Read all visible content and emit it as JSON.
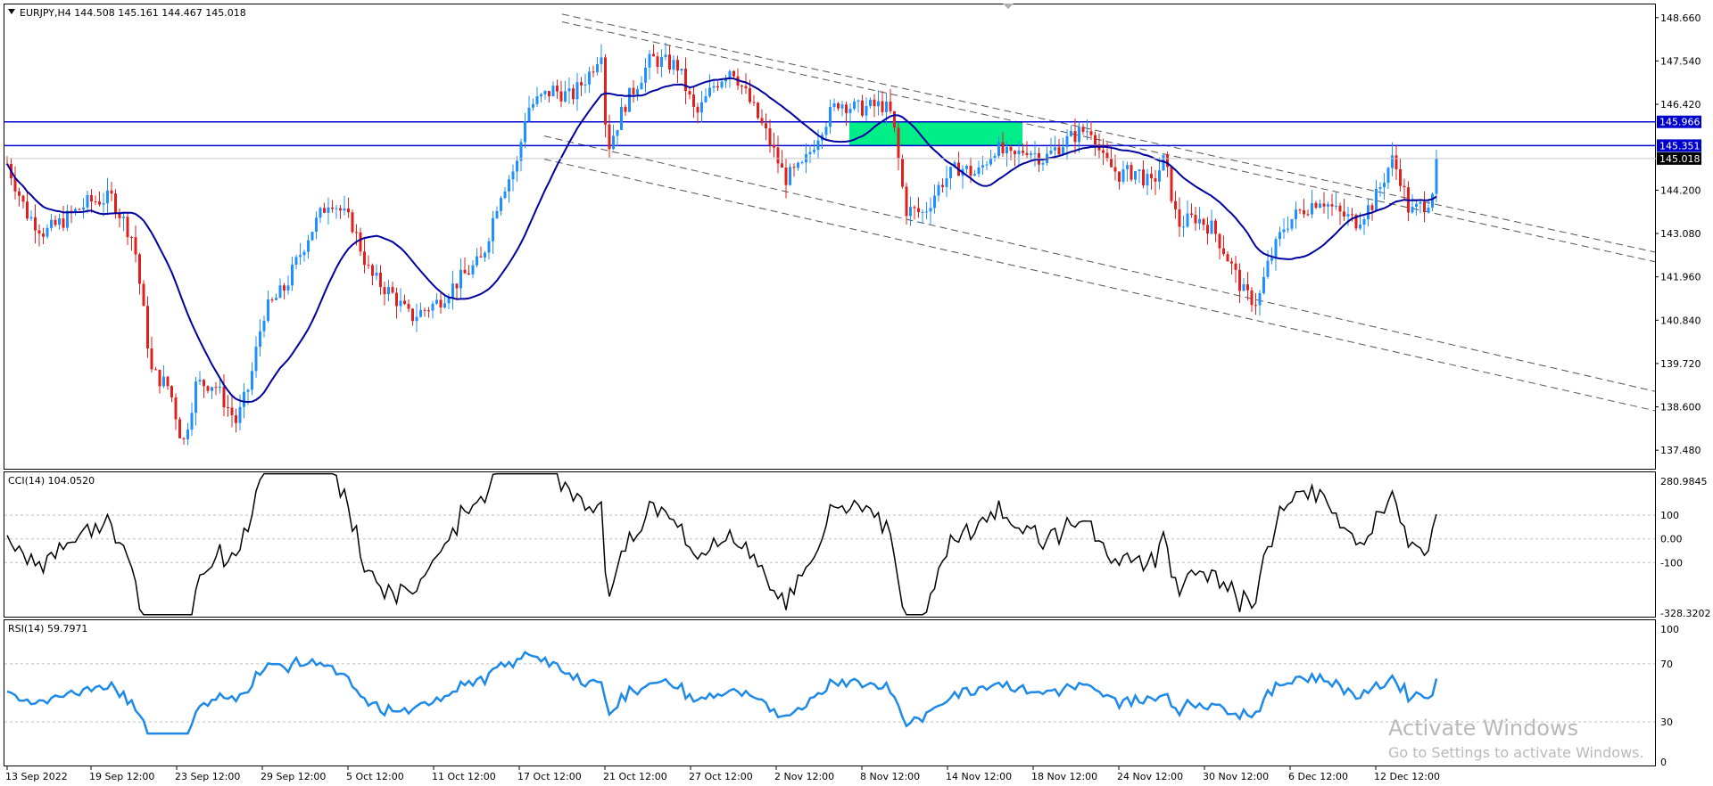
{
  "main": {
    "header": "EURJPY,H4  144.508 145.161 144.467 145.018",
    "price_ticks": [
      "148.660",
      "147.540",
      "146.420",
      "145.300",
      "144.200",
      "143.080",
      "141.960",
      "140.840",
      "139.720",
      "138.600",
      "137.480"
    ],
    "hlines": [
      {
        "value": 145.966,
        "label": "145.966",
        "color": "#0000cc"
      },
      {
        "value": 145.351,
        "label": "145.351",
        "color": "#0000cc"
      }
    ],
    "current": {
      "value": 145.018,
      "label": "145.018"
    },
    "ylim": [
      137.0,
      149.0
    ]
  },
  "cci": {
    "header": "CCI(14) 104.0520",
    "ticks": [
      "280.9845",
      "100",
      "0.00",
      "-100",
      "-328.3202"
    ],
    "levels": [
      100,
      0,
      -100
    ],
    "ylim": [
      -328.3202,
      280.9845
    ],
    "current": 104.052
  },
  "rsi": {
    "header": "RSI(14) 59.7971",
    "ticks": [
      "100",
      "70",
      "30",
      "0"
    ],
    "levels": [
      70,
      30
    ],
    "ylim": [
      0,
      100
    ],
    "current": 59.7971
  },
  "time_axis": [
    "13 Sep 2022",
    "19 Sep 12:00",
    "23 Sep 12:00",
    "29 Sep 12:00",
    "5 Oct 12:00",
    "11 Oct 12:00",
    "17 Oct 12:00",
    "21 Oct 12:00",
    "27 Oct 12:00",
    "2 Nov 12:00",
    "8 Nov 12:00",
    "14 Nov 12:00",
    "18 Nov 12:00",
    "24 Nov 12:00",
    "30 Nov 12:00",
    "6 Dec 12:00",
    "12 Dec 12:00"
  ],
  "watermark": {
    "line1": "Activate Windows",
    "line2": "Go to Settings to activate Windows."
  },
  "colors": {
    "bull": "#1e90ff",
    "bear": "#e0201c",
    "ma": "#0000a0",
    "hline": "#0000cc",
    "zone": "#00ee88",
    "rsi": "#1e8ae8"
  },
  "chart_data": {
    "type": "candlestick",
    "symbol": "EURJPY",
    "timeframe": "H4",
    "x": [
      "13 Sep 2022",
      "19 Sep 12:00",
      "23 Sep 12:00",
      "29 Sep 12:00",
      "5 Oct 12:00",
      "11 Oct 12:00",
      "17 Oct 12:00",
      "21 Oct 12:00",
      "27 Oct 12:00",
      "2 Nov 12:00",
      "8 Nov 12:00",
      "14 Nov 12:00",
      "18 Nov 12:00",
      "24 Nov 12:00",
      "30 Nov 12:00",
      "6 Dec 12:00",
      "12 Dec 12:00"
    ],
    "close_approx": [
      144.7,
      143.9,
      138.5,
      140.9,
      141.2,
      142.2,
      145.4,
      147.6,
      146.8,
      144.2,
      145.9,
      144.8,
      145.5,
      143.6,
      141.5,
      143.5,
      145.0
    ],
    "last": {
      "open": 144.508,
      "high": 145.161,
      "low": 144.467,
      "close": 145.018
    },
    "levels": [
      145.966,
      145.351
    ],
    "ylim": [
      137.0,
      149.0
    ],
    "channel_lines": [
      {
        "from": [
          "17 Oct 12:00",
          148.75
        ],
        "to": [
          "14 Dec",
          142.6
        ]
      },
      {
        "from": [
          "17 Oct 12:00",
          148.55
        ],
        "to": [
          "14 Dec",
          142.35
        ]
      },
      {
        "from": [
          "17 Oct 12:00",
          145.6
        ],
        "to": [
          "14 Dec",
          139.0
        ]
      },
      {
        "from": [
          "17 Oct 12:00",
          145.0
        ],
        "to": [
          "14 Dec",
          138.5
        ]
      }
    ],
    "zone": {
      "from": "7 Nov",
      "to": "16 Nov",
      "low": 145.35,
      "high": 145.95
    }
  }
}
